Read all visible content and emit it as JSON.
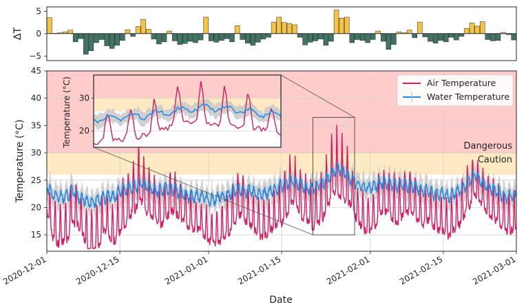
{
  "chart_data": [
    {
      "id": "delta",
      "type": "bar",
      "ylabel": "ΔT",
      "ylim": [
        -6,
        6
      ],
      "yticks": [
        -5,
        0,
        5
      ],
      "x_start": "2020-12-01",
      "x_days": 90,
      "bar_width_days": 1,
      "positive_color": "#f6c445",
      "negative_color": "#3f7466",
      "values": [
        3.6,
        0.1,
        0.2,
        0.4,
        0.8,
        -1.8,
        -1.1,
        -4.6,
        -3.8,
        -2.0,
        -1.3,
        -2.7,
        -3.3,
        -2.6,
        -1.5,
        0.9,
        -0.6,
        1.6,
        3.2,
        1.0,
        -1.2,
        -2.3,
        -1.8,
        0.6,
        -1.6,
        -2.4,
        -2.2,
        -1.7,
        -2.0,
        -1.4,
        3.7,
        -1.6,
        -1.9,
        -1.5,
        -1.1,
        -1.8,
        1.8,
        -1.3,
        -2.1,
        -2.6,
        -1.9,
        -1.2,
        -0.8,
        2.6,
        3.7,
        2.5,
        2.3,
        2.0,
        -0.8,
        -2.5,
        -1.9,
        -1.6,
        -1.2,
        -2.6,
        -1.7,
        5.3,
        3.5,
        3.7,
        -2.0,
        -1.3,
        -1.5,
        -2.0,
        -1.3,
        0.6,
        -1.7,
        -3.5,
        -2.4,
        0.4,
        0.2,
        0.8,
        -0.9,
        2.6,
        -0.7,
        -1.7,
        -2.1,
        -1.5,
        -1.8,
        -0.8,
        -1.4,
        -0.6,
        1.2,
        2.4,
        1.7,
        2.7,
        -1.3,
        -1.6,
        -1.5,
        0.3,
        -0.2,
        -1.4
      ]
    },
    {
      "id": "main",
      "type": "line",
      "xlabel": "Date",
      "ylabel": "Temperature (°C)",
      "ylim": [
        12,
        45
      ],
      "yticks": [
        15,
        20,
        25,
        30,
        35,
        40,
        45
      ],
      "x_start": "2020-12-01",
      "x_days": 90,
      "xticks": [
        {
          "day": 0,
          "label": "2020-12-01"
        },
        {
          "day": 14,
          "label": "2020-12-15"
        },
        {
          "day": 31,
          "label": "2021-01-01"
        },
        {
          "day": 45,
          "label": "2021-01-15"
        },
        {
          "day": 62,
          "label": "2021-02-01"
        },
        {
          "day": 76,
          "label": "2021-02-15"
        },
        {
          "day": 90,
          "label": "2021-03-01"
        }
      ],
      "zones": [
        {
          "name": "Dangerous",
          "from": 30,
          "to": 45,
          "color": "#ffcccc"
        },
        {
          "name": "Caution",
          "from": 26,
          "to": 30,
          "color": "#fdeac2"
        }
      ],
      "zone_labels": [
        "Dangerous",
        "Caution"
      ],
      "legend": [
        "Air Temperature",
        "Water Temperature"
      ],
      "series": [
        {
          "name": "Air Temperature",
          "color": "#d81b60",
          "daily_mean": [
            22,
            17,
            16,
            16,
            17,
            20,
            19,
            17,
            14,
            15,
            16,
            18,
            17,
            16,
            18,
            20,
            21,
            23,
            25,
            22,
            21,
            20,
            19,
            21,
            22,
            21,
            20,
            19,
            18,
            18,
            17,
            16,
            15,
            16,
            17,
            18,
            20,
            22,
            20,
            19,
            18,
            17,
            17,
            18,
            19,
            20,
            22,
            24,
            23,
            21,
            20,
            19,
            20,
            21,
            24,
            27,
            26,
            25,
            24,
            21,
            19,
            18,
            18,
            19,
            22,
            22,
            21,
            20,
            21,
            22,
            22,
            20,
            19,
            20,
            19,
            18,
            18,
            17,
            18,
            19,
            21,
            23,
            25,
            23,
            22,
            21,
            20,
            19,
            18,
            18,
            18
          ],
          "daily_amp": [
            5,
            5,
            6,
            5,
            6,
            6,
            5,
            5,
            5,
            6,
            6,
            5,
            5,
            5,
            6,
            7,
            6,
            7,
            8,
            6,
            6,
            5,
            5,
            6,
            6,
            5,
            5,
            5,
            4,
            4,
            4,
            4,
            4,
            5,
            5,
            6,
            6,
            7,
            5,
            5,
            5,
            5,
            5,
            5,
            5,
            6,
            7,
            7,
            6,
            6,
            6,
            6,
            6,
            6,
            8,
            9,
            9,
            8,
            7,
            5,
            5,
            5,
            5,
            5,
            6,
            6,
            6,
            6,
            6,
            6,
            6,
            5,
            5,
            5,
            5,
            5,
            5,
            5,
            5,
            5,
            6,
            6,
            5,
            5,
            5,
            5,
            5,
            5,
            5,
            5,
            5
          ]
        },
        {
          "name": "Water Temperature",
          "color": "#1e88e5",
          "band_color": "#c8c8c8",
          "daily_mean": [
            24,
            22.5,
            22,
            22,
            22.5,
            23,
            22,
            21.5,
            21,
            21,
            21.5,
            22,
            22,
            22,
            23,
            23.5,
            23.5,
            24,
            24.5,
            24,
            23.5,
            23,
            23,
            23.5,
            23.5,
            23,
            22.5,
            22,
            22,
            22,
            22,
            21.5,
            21.5,
            22,
            22,
            22.5,
            23,
            23.5,
            23,
            23,
            22.5,
            22.5,
            22.5,
            23,
            23.5,
            24,
            24.5,
            25,
            24.5,
            24,
            23.5,
            23.5,
            24,
            24.5,
            25.5,
            26.5,
            27,
            26.5,
            25.5,
            24.5,
            24,
            23.5,
            23.5,
            24,
            24.5,
            24.5,
            24.5,
            24,
            24,
            24,
            24,
            23.5,
            23,
            23,
            22.5,
            22.5,
            22.5,
            22,
            22.5,
            23,
            23.5,
            25,
            26,
            25,
            24,
            23.5,
            23,
            22.5,
            22,
            22,
            22
          ]
        }
      ],
      "inset": {
        "ylabel": "Temperature (°C)",
        "yticks": [
          20,
          30
        ],
        "ylim": [
          15,
          37
        ],
        "x_day_range": [
          51,
          59
        ],
        "y_range": [
          15,
          36.5
        ]
      }
    }
  ]
}
